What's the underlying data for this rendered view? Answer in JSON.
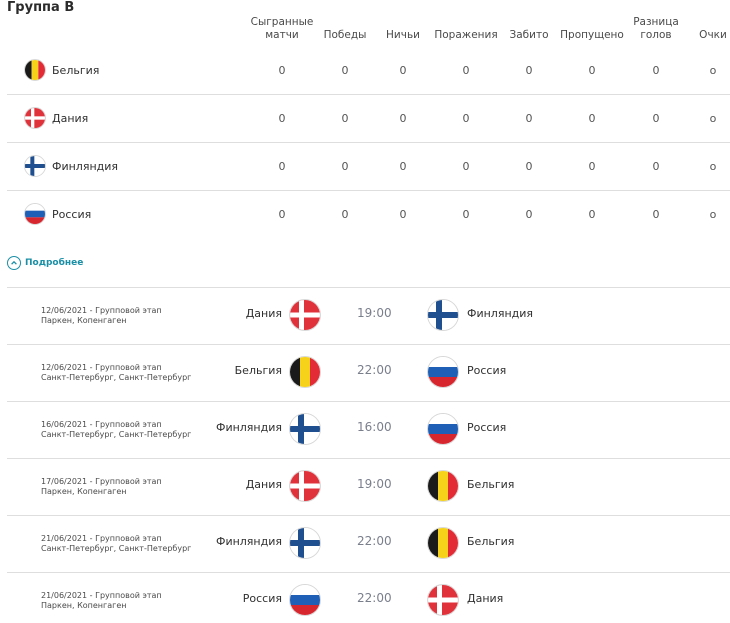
{
  "group": {
    "title": "Группа B"
  },
  "table": {
    "headers": {
      "played": [
        "Сыгранные",
        "матчи"
      ],
      "wins": "Победы",
      "draws": "Ничьи",
      "losses": "Поражения",
      "scored": "Забито",
      "conceded": "Пропущено",
      "diff": [
        "Разница",
        "голов"
      ],
      "points": "Очки"
    },
    "rows": [
      {
        "team": "Бельгия",
        "flag": "belgium-flag-icon",
        "played": "0",
        "wins": "0",
        "draws": "0",
        "losses": "0",
        "scored": "0",
        "conceded": "0",
        "diff": "0",
        "points": "o"
      },
      {
        "team": "Дания",
        "flag": "denmark-flag-icon",
        "played": "0",
        "wins": "0",
        "draws": "0",
        "losses": "0",
        "scored": "0",
        "conceded": "0",
        "diff": "0",
        "points": "o"
      },
      {
        "team": "Финляндия",
        "flag": "finland-flag-icon",
        "played": "0",
        "wins": "0",
        "draws": "0",
        "losses": "0",
        "scored": "0",
        "conceded": "0",
        "diff": "0",
        "points": "o"
      },
      {
        "team": "Россия",
        "flag": "russia-flag-icon",
        "played": "0",
        "wins": "0",
        "draws": "0",
        "losses": "0",
        "scored": "0",
        "conceded": "0",
        "diff": "0",
        "points": "o"
      }
    ]
  },
  "more": {
    "label": "Подробнее",
    "icon": "chevron-up-icon",
    "color": "#1a8fa6"
  },
  "matches": [
    {
      "date_stage": "12/06/2021 - Групповой этап",
      "venue": "Паркен, Копенгаген",
      "home": "Дания",
      "home_flag": "denmark-flag-icon",
      "time": "19:00",
      "away": "Финляндия",
      "away_flag": "finland-flag-icon"
    },
    {
      "date_stage": "12/06/2021 - Групповой этап",
      "venue": "Санкт-Петербург, Санкт-Петербург",
      "home": "Бельгия",
      "home_flag": "belgium-flag-icon",
      "time": "22:00",
      "away": "Россия",
      "away_flag": "russia-flag-icon"
    },
    {
      "date_stage": "16/06/2021 - Групповой этап",
      "venue": "Санкт-Петербург, Санкт-Петербург",
      "home": "Финляндия",
      "home_flag": "finland-flag-icon",
      "time": "16:00",
      "away": "Россия",
      "away_flag": "russia-flag-icon"
    },
    {
      "date_stage": "17/06/2021 - Групповой этап",
      "venue": "Паркен, Копенгаген",
      "home": "Дания",
      "home_flag": "denmark-flag-icon",
      "time": "19:00",
      "away": "Бельгия",
      "away_flag": "belgium-flag-icon"
    },
    {
      "date_stage": "21/06/2021 - Групповой этап",
      "venue": "Санкт-Петербург, Санкт-Петербург",
      "home": "Финляндия",
      "home_flag": "finland-flag-icon",
      "time": "22:00",
      "away": "Бельгия",
      "away_flag": "belgium-flag-icon"
    },
    {
      "date_stage": "21/06/2021 - Групповой этап",
      "venue": "Паркен, Копенгаген",
      "home": "Россия",
      "home_flag": "russia-flag-icon",
      "time": "22:00",
      "away": "Дания",
      "away_flag": "denmark-flag-icon"
    }
  ]
}
